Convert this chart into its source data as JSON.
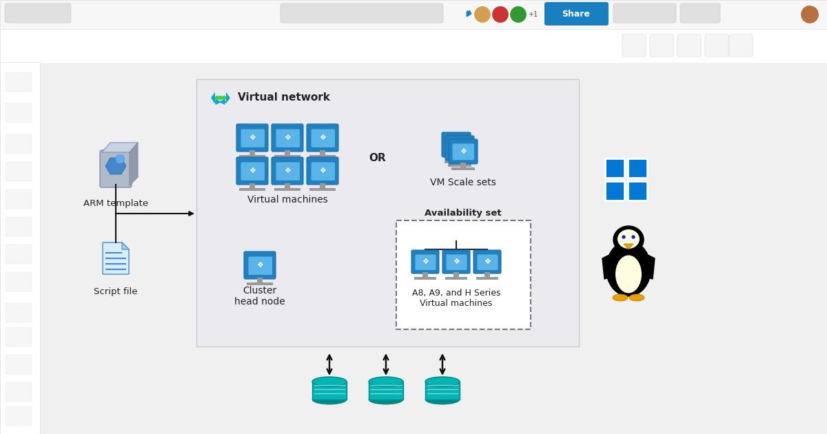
{
  "bg_color": "#f0f0f0",
  "topbar_color": "#f7f7f7",
  "white": "#ffffff",
  "panel_bg": "#eaeaef",
  "avail_inner_bg": "#f0f0f5",
  "text_dark": "#222222",
  "text_mid": "#444444",
  "vm_blue_dark": "#1b6faa",
  "vm_blue_mid": "#2080c0",
  "vm_blue_light": "#5ab4e8",
  "vm_blue_screen": "#7ac8f0",
  "vm_stand": "#999999",
  "arrow_color": "#111111",
  "dashed_color": "#777777",
  "vnet_icon_color": "#00aacc",
  "vnet_dot_color": "#44cc44",
  "or_text": "OR",
  "vnet_label": "Virtual network",
  "vm_label": "Virtual machines",
  "vmscale_label": "VM Scale sets",
  "cluster_label": "Cluster\nhead node",
  "avail_label": "Availability set",
  "hpc_label": "A8, A9, and H Series\nVirtual machines",
  "arm_label": "ARM template",
  "script_label": "Script file",
  "win_blue": "#0078d4",
  "storage_teal": "#00b4b4",
  "storage_teal_dark": "#008888",
  "share_blue": "#1a7fc1",
  "sidebar_bg": "#ffffff",
  "toolbar_bg": "#ffffff"
}
